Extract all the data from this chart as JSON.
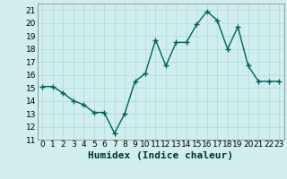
{
  "x": [
    0,
    1,
    2,
    3,
    4,
    5,
    6,
    7,
    8,
    9,
    10,
    11,
    12,
    13,
    14,
    15,
    16,
    17,
    18,
    19,
    20,
    21,
    22,
    23
  ],
  "y": [
    15.1,
    15.1,
    14.6,
    14.0,
    13.7,
    13.1,
    13.1,
    11.5,
    13.0,
    15.5,
    16.1,
    18.7,
    16.7,
    18.5,
    18.5,
    19.9,
    20.9,
    20.2,
    18.0,
    19.7,
    16.7,
    15.5,
    15.5,
    15.5
  ],
  "line_color": "#006060",
  "marker": "+",
  "marker_size": 4,
  "marker_lw": 1.0,
  "background_color": "#d0eeee",
  "grid_color": "#b0d8d8",
  "xlabel": "Humidex (Indice chaleur)",
  "xlabel_fontsize": 8,
  "xlim": [
    -0.5,
    23.5
  ],
  "ylim": [
    11,
    21.5
  ],
  "yticks": [
    11,
    12,
    13,
    14,
    15,
    16,
    17,
    18,
    19,
    20,
    21
  ],
  "xticks": [
    0,
    1,
    2,
    3,
    4,
    5,
    6,
    7,
    8,
    9,
    10,
    11,
    12,
    13,
    14,
    15,
    16,
    17,
    18,
    19,
    20,
    21,
    22,
    23
  ],
  "tick_fontsize": 6.5,
  "line_width": 1.0
}
